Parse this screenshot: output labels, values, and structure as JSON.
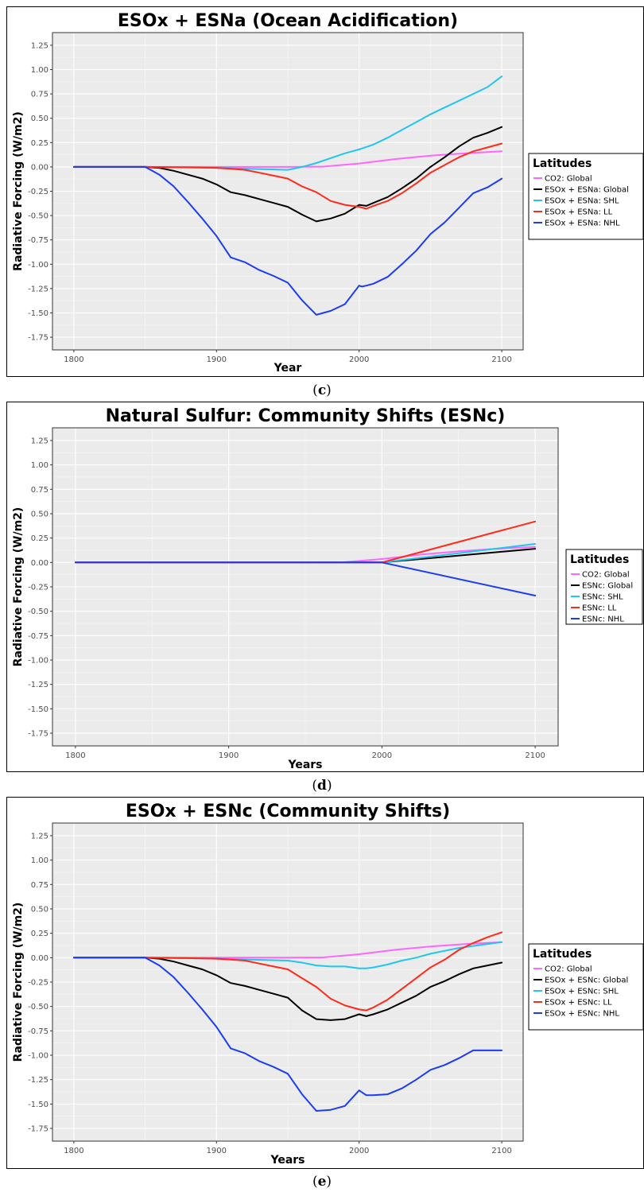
{
  "chart_data": [
    {
      "type": "line",
      "title": "ESOx + ESNa (Ocean Acidification)",
      "xlabel": "Year",
      "ylabel": "Radiative Forcing (W/m2)",
      "xlim": [
        1785,
        2115
      ],
      "ylim": [
        -1.88,
        1.38
      ],
      "xticks": [
        "1800",
        "1900",
        "2000",
        "2100"
      ],
      "yticks": [
        "1.25",
        "1.00",
        "0.75",
        "0.50",
        "0.25",
        "0.00",
        "-0.25",
        "-0.50",
        "-0.75",
        "-1.00",
        "-1.25",
        "-1.50",
        "-1.75"
      ],
      "grid": true,
      "legend_position": "right",
      "legend_title": "Latitudes",
      "caption": "c",
      "series": [
        {
          "name": "CO2: Global",
          "color": "#ff66ff",
          "x": [
            1800,
            1850,
            1900,
            1950,
            1975,
            2000,
            2025,
            2050,
            2075,
            2100
          ],
          "y": [
            0,
            0,
            0,
            0,
            0.003,
            0.035,
            0.08,
            0.115,
            0.14,
            0.16
          ]
        },
        {
          "name": "ESOx + ESNa: Global",
          "color": "#000000",
          "x": [
            1800,
            1850,
            1860,
            1870,
            1880,
            1890,
            1900,
            1910,
            1920,
            1930,
            1940,
            1950,
            1960,
            1970,
            1980,
            1990,
            2000,
            2005,
            2010,
            2020,
            2030,
            2040,
            2050,
            2060,
            2070,
            2080,
            2090,
            2100
          ],
          "y": [
            0,
            0,
            -0.01,
            -0.04,
            -0.08,
            -0.12,
            -0.18,
            -0.26,
            -0.29,
            -0.33,
            -0.37,
            -0.41,
            -0.49,
            -0.56,
            -0.53,
            -0.48,
            -0.39,
            -0.4,
            -0.37,
            -0.31,
            -0.22,
            -0.12,
            0.0,
            0.1,
            0.21,
            0.3,
            0.35,
            0.41
          ]
        },
        {
          "name": "ESOx + ESNa: SHL",
          "color": "#1fc6f0",
          "x": [
            1800,
            1850,
            1900,
            1950,
            1960,
            1970,
            1980,
            1990,
            2000,
            2010,
            2020,
            2030,
            2040,
            2050,
            2060,
            2070,
            2080,
            2090,
            2100
          ],
          "y": [
            0,
            0,
            -0.01,
            -0.03,
            0.0,
            0.04,
            0.09,
            0.14,
            0.18,
            0.23,
            0.3,
            0.38,
            0.46,
            0.54,
            0.61,
            0.68,
            0.75,
            0.82,
            0.93
          ]
        },
        {
          "name": "ESOx + ESNa: LL",
          "color": "#ff2a1a",
          "x": [
            1800,
            1850,
            1880,
            1900,
            1910,
            1920,
            1930,
            1940,
            1950,
            1960,
            1970,
            1980,
            1990,
            2000,
            2005,
            2010,
            2020,
            2030,
            2040,
            2050,
            2060,
            2070,
            2080,
            2090,
            2100
          ],
          "y": [
            0,
            0,
            -0.005,
            -0.01,
            -0.02,
            -0.03,
            -0.06,
            -0.09,
            -0.12,
            -0.2,
            -0.26,
            -0.35,
            -0.39,
            -0.41,
            -0.43,
            -0.4,
            -0.35,
            -0.27,
            -0.17,
            -0.06,
            0.02,
            0.1,
            0.16,
            0.2,
            0.24
          ]
        },
        {
          "name": "ESOx + ESNa: NHL",
          "color": "#1b3cf5",
          "x": [
            1800,
            1850,
            1860,
            1870,
            1880,
            1890,
            1900,
            1910,
            1920,
            1930,
            1940,
            1950,
            1960,
            1970,
            1980,
            1990,
            2000,
            2002,
            2005,
            2010,
            2020,
            2030,
            2040,
            2050,
            2060,
            2070,
            2080,
            2090,
            2100
          ],
          "y": [
            0,
            0,
            -0.08,
            -0.2,
            -0.36,
            -0.53,
            -0.71,
            -0.93,
            -0.98,
            -1.06,
            -1.12,
            -1.19,
            -1.37,
            -1.52,
            -1.48,
            -1.41,
            -1.22,
            -1.23,
            -1.22,
            -1.2,
            -1.13,
            -1.0,
            -0.86,
            -0.69,
            -0.57,
            -0.42,
            -0.27,
            -0.21,
            -0.12
          ]
        }
      ]
    },
    {
      "type": "line",
      "title": "Natural Sulfur: Community Shifts (ESNc)",
      "xlabel": "Years",
      "ylabel": "Radiative Forcing (W/m2)",
      "xlim": [
        1785,
        2115
      ],
      "ylim": [
        -1.88,
        1.38
      ],
      "xticks": [
        "1800",
        "1900",
        "2000",
        "2100"
      ],
      "yticks": [
        "1.25",
        "1.00",
        "0.75",
        "0.50",
        "0.25",
        "0.00",
        "-0.25",
        "-0.50",
        "-0.75",
        "-1.00",
        "-1.25",
        "-1.50",
        "-1.75"
      ],
      "grid": true,
      "legend_position": "right",
      "legend_title": "Latitudes",
      "caption": "d",
      "series": [
        {
          "name": "CO2: Global",
          "color": "#ff66ff",
          "x": [
            1800,
            1950,
            1975,
            2000,
            2025,
            2050,
            2075,
            2100
          ],
          "y": [
            0,
            0,
            0.003,
            0.035,
            0.08,
            0.115,
            0.14,
            0.16
          ]
        },
        {
          "name": "ESNc: Global",
          "color": "#000000",
          "x": [
            1800,
            2000,
            2100
          ],
          "y": [
            0,
            0,
            0.14
          ]
        },
        {
          "name": "ESNc: SHL",
          "color": "#1fc6f0",
          "x": [
            1800,
            2000,
            2100
          ],
          "y": [
            0,
            0,
            0.19
          ]
        },
        {
          "name": "ESNc: LL",
          "color": "#ff2a1a",
          "x": [
            1800,
            2000,
            2100
          ],
          "y": [
            0,
            0,
            0.42
          ]
        },
        {
          "name": "ESNc: NHL",
          "color": "#1b3cf5",
          "x": [
            1800,
            2000,
            2100
          ],
          "y": [
            0,
            0,
            -0.34
          ]
        }
      ]
    },
    {
      "type": "line",
      "title": "ESOx + ESNc (Community Shifts)",
      "xlabel": "Years",
      "ylabel": "Radiative Forcing (W/m2)",
      "xlim": [
        1785,
        2115
      ],
      "ylim": [
        -1.88,
        1.38
      ],
      "xticks": [
        "1800",
        "1900",
        "2000",
        "2100"
      ],
      "yticks": [
        "1.25",
        "1.00",
        "0.75",
        "0.50",
        "0.25",
        "0.00",
        "-0.25",
        "-0.50",
        "-0.75",
        "-1.00",
        "-1.25",
        "-1.50",
        "-1.75"
      ],
      "grid": true,
      "legend_position": "right",
      "legend_title": "Latitudes",
      "caption": "e",
      "series": [
        {
          "name": "CO2: Global",
          "color": "#ff66ff",
          "x": [
            1800,
            1850,
            1900,
            1950,
            1975,
            2000,
            2025,
            2050,
            2075,
            2100
          ],
          "y": [
            0,
            0,
            0,
            0,
            0.003,
            0.035,
            0.08,
            0.115,
            0.14,
            0.16
          ]
        },
        {
          "name": "ESOx + ESNc: Global",
          "color": "#000000",
          "x": [
            1800,
            1850,
            1860,
            1870,
            1880,
            1890,
            1900,
            1910,
            1920,
            1930,
            1940,
            1950,
            1960,
            1970,
            1980,
            1990,
            2000,
            2005,
            2010,
            2020,
            2030,
            2040,
            2050,
            2060,
            2070,
            2080,
            2090,
            2100
          ],
          "y": [
            0,
            0,
            -0.01,
            -0.04,
            -0.08,
            -0.12,
            -0.18,
            -0.26,
            -0.29,
            -0.33,
            -0.37,
            -0.41,
            -0.54,
            -0.63,
            -0.64,
            -0.63,
            -0.58,
            -0.6,
            -0.58,
            -0.53,
            -0.46,
            -0.39,
            -0.3,
            -0.24,
            -0.17,
            -0.11,
            -0.08,
            -0.05
          ]
        },
        {
          "name": "ESOx + ESNc: SHL",
          "color": "#1fc6f0",
          "x": [
            1800,
            1850,
            1900,
            1950,
            1960,
            1970,
            1980,
            1990,
            2000,
            2005,
            2010,
            2020,
            2030,
            2040,
            2050,
            2060,
            2070,
            2080,
            2090,
            2100
          ],
          "y": [
            0,
            0,
            -0.01,
            -0.03,
            -0.05,
            -0.08,
            -0.09,
            -0.09,
            -0.11,
            -0.11,
            -0.1,
            -0.07,
            -0.03,
            0.0,
            0.04,
            0.07,
            0.1,
            0.12,
            0.14,
            0.16
          ]
        },
        {
          "name": "ESOx + ESNc: LL",
          "color": "#ff2a1a",
          "x": [
            1800,
            1850,
            1880,
            1900,
            1910,
            1920,
            1930,
            1940,
            1950,
            1960,
            1970,
            1980,
            1990,
            2000,
            2005,
            2010,
            2020,
            2030,
            2040,
            2050,
            2060,
            2070,
            2080,
            2090,
            2100
          ],
          "y": [
            0,
            0,
            -0.005,
            -0.01,
            -0.02,
            -0.03,
            -0.06,
            -0.09,
            -0.12,
            -0.21,
            -0.3,
            -0.42,
            -0.49,
            -0.53,
            -0.54,
            -0.51,
            -0.43,
            -0.32,
            -0.21,
            -0.1,
            -0.02,
            0.08,
            0.15,
            0.21,
            0.26
          ]
        },
        {
          "name": "ESOx + ESNc: NHL",
          "color": "#1b3cf5",
          "x": [
            1800,
            1850,
            1860,
            1870,
            1880,
            1890,
            1900,
            1910,
            1920,
            1930,
            1940,
            1950,
            1960,
            1970,
            1980,
            1990,
            2000,
            2005,
            2010,
            2020,
            2030,
            2040,
            2050,
            2060,
            2070,
            2080,
            2090,
            2100
          ],
          "y": [
            0,
            0,
            -0.08,
            -0.2,
            -0.36,
            -0.53,
            -0.71,
            -0.93,
            -0.98,
            -1.06,
            -1.12,
            -1.19,
            -1.4,
            -1.57,
            -1.56,
            -1.52,
            -1.36,
            -1.41,
            -1.41,
            -1.4,
            -1.34,
            -1.25,
            -1.15,
            -1.1,
            -1.03,
            -0.95,
            -0.95,
            -0.95
          ]
        }
      ]
    }
  ]
}
